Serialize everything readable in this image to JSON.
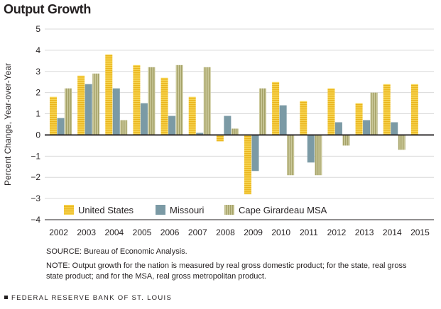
{
  "chart_data": {
    "type": "bar",
    "title": "Output Growth",
    "ylabel": "Percent Change, Year-over-Year",
    "xlabel": "",
    "ylim": [
      -4,
      5
    ],
    "yticks": [
      5,
      4,
      3,
      2,
      1,
      0,
      -1,
      -2,
      -3,
      -4
    ],
    "grid": true,
    "legend_position": "bottom-left",
    "categories": [
      "2002",
      "2003",
      "2004",
      "2005",
      "2006",
      "2007",
      "2008",
      "2009",
      "2010",
      "2011",
      "2012",
      "2013",
      "2014",
      "2015"
    ],
    "series": [
      {
        "name": "United States",
        "color": "#f2c12e",
        "pattern": "horizontal-stripes",
        "values": [
          1.8,
          2.8,
          3.8,
          3.3,
          2.7,
          1.8,
          -0.3,
          -2.8,
          2.5,
          1.6,
          2.2,
          1.5,
          2.4,
          2.4
        ]
      },
      {
        "name": "Missouri",
        "color": "#7b9aa5",
        "pattern": "solid",
        "values": [
          0.8,
          2.4,
          2.2,
          1.5,
          0.9,
          0.1,
          0.9,
          -1.7,
          1.4,
          -1.3,
          0.6,
          0.7,
          0.6,
          null
        ]
      },
      {
        "name": "Cape Girardeau MSA",
        "color": "#b5b37c",
        "pattern": "vertical-stripes",
        "values": [
          2.2,
          2.9,
          0.7,
          3.2,
          3.3,
          3.2,
          0.3,
          2.2,
          -1.9,
          -1.9,
          -0.5,
          2.0,
          -0.7,
          null
        ]
      }
    ]
  },
  "source_text": "SOURCE: Bureau of Economic Analysis.",
  "note_text": "NOTE: Output growth for the nation is measured by real gross domestic product; for the state, real gross state product; and for the MSA, real gross metropolitan product.",
  "footer_text": "FEDERAL RESERVE BANK OF ST. LOUIS"
}
